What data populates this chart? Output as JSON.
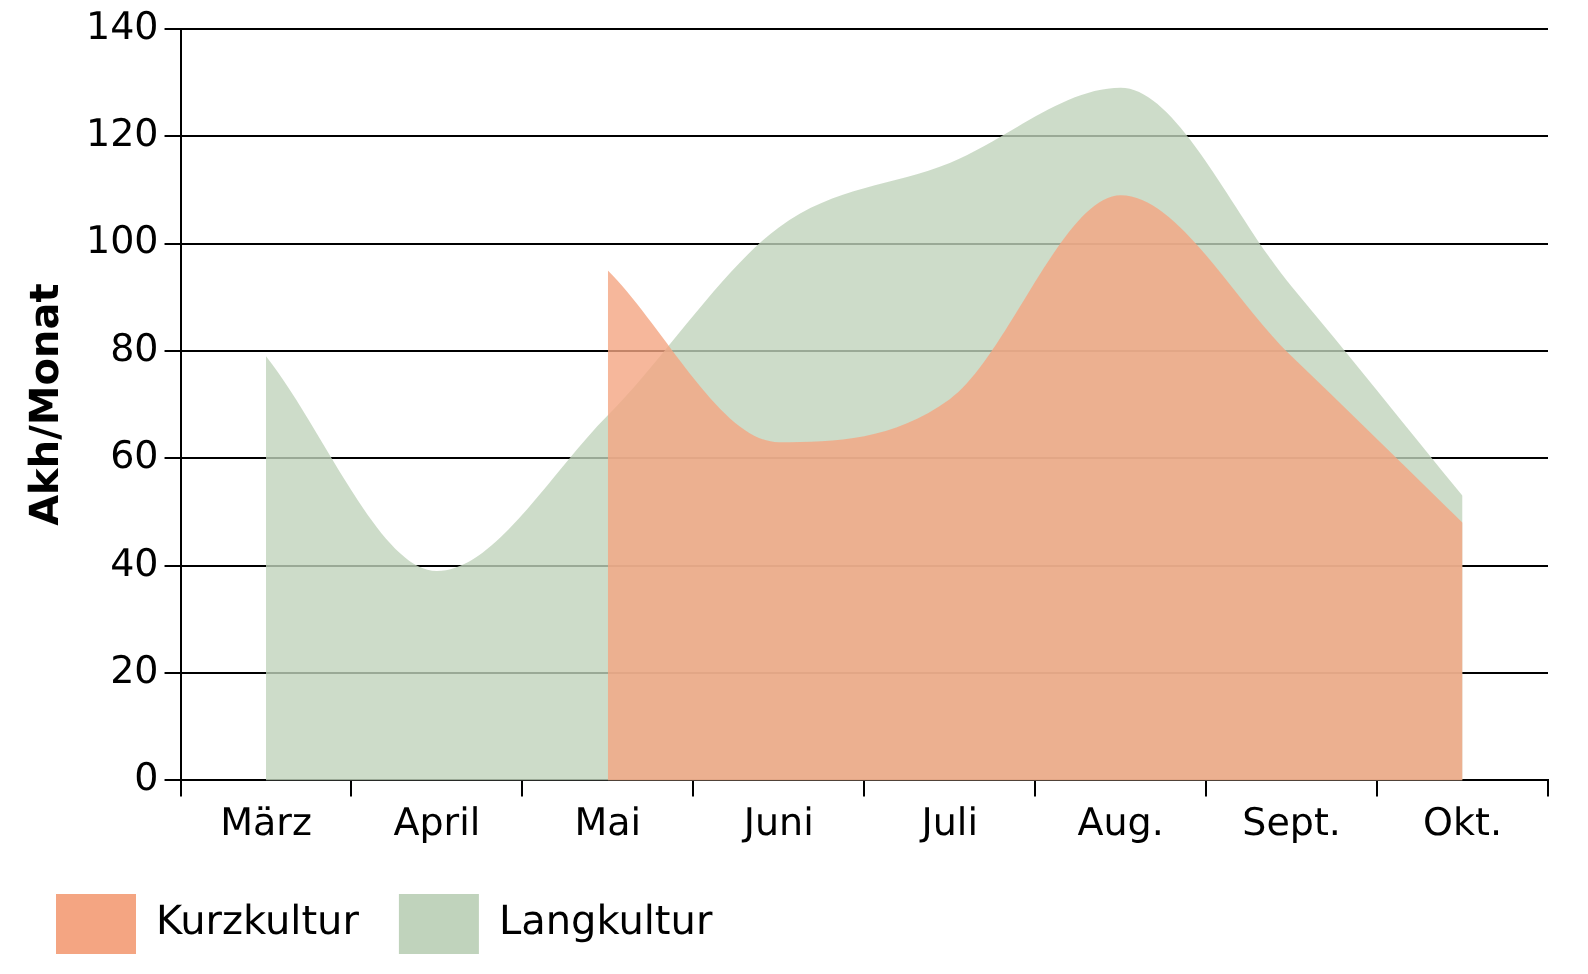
{
  "chart_data": {
    "type": "area",
    "ylabel": "Akh/Monat",
    "categories": [
      "März",
      "April",
      "Mai",
      "Juni",
      "Juli",
      "Aug.",
      "Sept.",
      "Okt."
    ],
    "series": [
      {
        "name": "Kurzkultur",
        "color": "#f4a582",
        "values": [
          null,
          null,
          95,
          63,
          71,
          109,
          79,
          48
        ]
      },
      {
        "name": "Langkultur",
        "color": "#c0d3bc",
        "values": [
          79,
          39,
          68,
          103,
          115,
          129,
          92,
          53
        ]
      }
    ],
    "ylim": [
      0,
      140
    ],
    "yticks": [
      0,
      20,
      40,
      60,
      80,
      100,
      120,
      140
    ],
    "grid": "y",
    "legend": "bottom left"
  }
}
